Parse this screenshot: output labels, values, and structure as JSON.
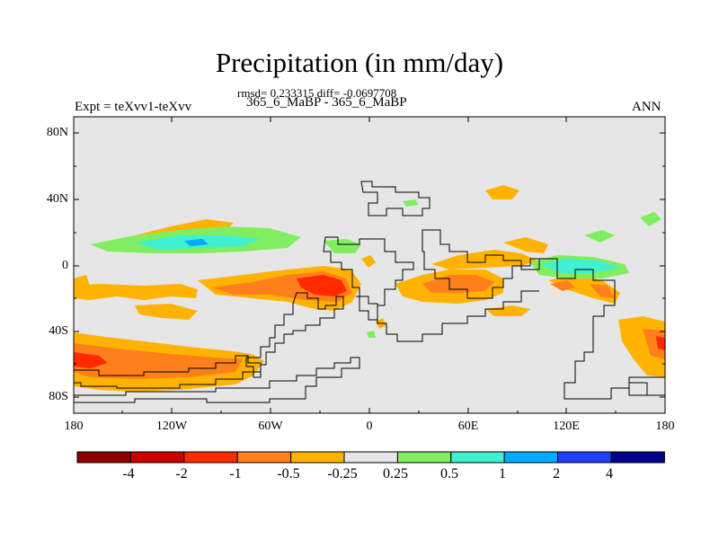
{
  "title": "Precipitation (in mm/day)",
  "stats_line": "rmsd= 0.233315 diff= -0.0697708",
  "case_line": "365_6_MaBP - 365_6_MaBP",
  "expt_label": "Expt = teXvv1-teXvv",
  "season_label": "ANN",
  "lat_ticks": [
    "80N",
    "40N",
    "0",
    "40S",
    "80S"
  ],
  "lon_ticks": [
    "180",
    "120W",
    "60W",
    "0",
    "60E",
    "120E",
    "180"
  ],
  "colorbar": {
    "labels": [
      "-4",
      "-2",
      "-1",
      "-0.5",
      "-0.25",
      "0.25",
      "0.5",
      "1",
      "2",
      "4"
    ],
    "colors": [
      "#8b0000",
      "#cc0000",
      "#ff2a00",
      "#ff7f1a",
      "#ffb300",
      "#e6e6e6",
      "#80ee60",
      "#40f0d0",
      "#00aaff",
      "#2040ff",
      "#00008b"
    ]
  },
  "map_colors": {
    "background": "#e6e6e6",
    "neg_0_25": "#ffb300",
    "neg_0_5": "#ff7f1a",
    "neg_1": "#ff2a00",
    "pos_0_25": "#80ee60",
    "pos_0_5": "#40f0d0",
    "pos_1": "#00aaff"
  }
}
